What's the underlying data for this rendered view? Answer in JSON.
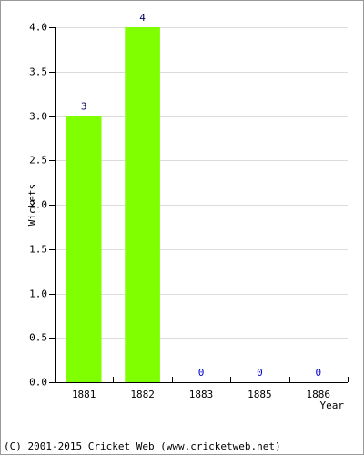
{
  "chart_data": {
    "type": "bar",
    "x_label": "Year",
    "y_label": "Wickets",
    "categories": [
      "1881",
      "1882",
      "1883",
      "1885",
      "1886"
    ],
    "values": [
      3,
      4,
      0,
      0,
      0
    ],
    "color": "#80ff00",
    "ylim": [
      0,
      4
    ],
    "yticks": [
      {
        "value": 0,
        "label": "0.0"
      },
      0.5,
      {
        "value": 1,
        "label": "1.0"
      },
      1.5,
      {
        "value": 2,
        "label": "2.0"
      },
      2.5,
      {
        "value": 3,
        "label": "3.0"
      },
      3.5,
      {
        "value": 4,
        "label": "4.0"
      }
    ],
    "grid": true
  },
  "footer": "(C) 2001-2015 Cricket Web (www.cricketweb.net)"
}
